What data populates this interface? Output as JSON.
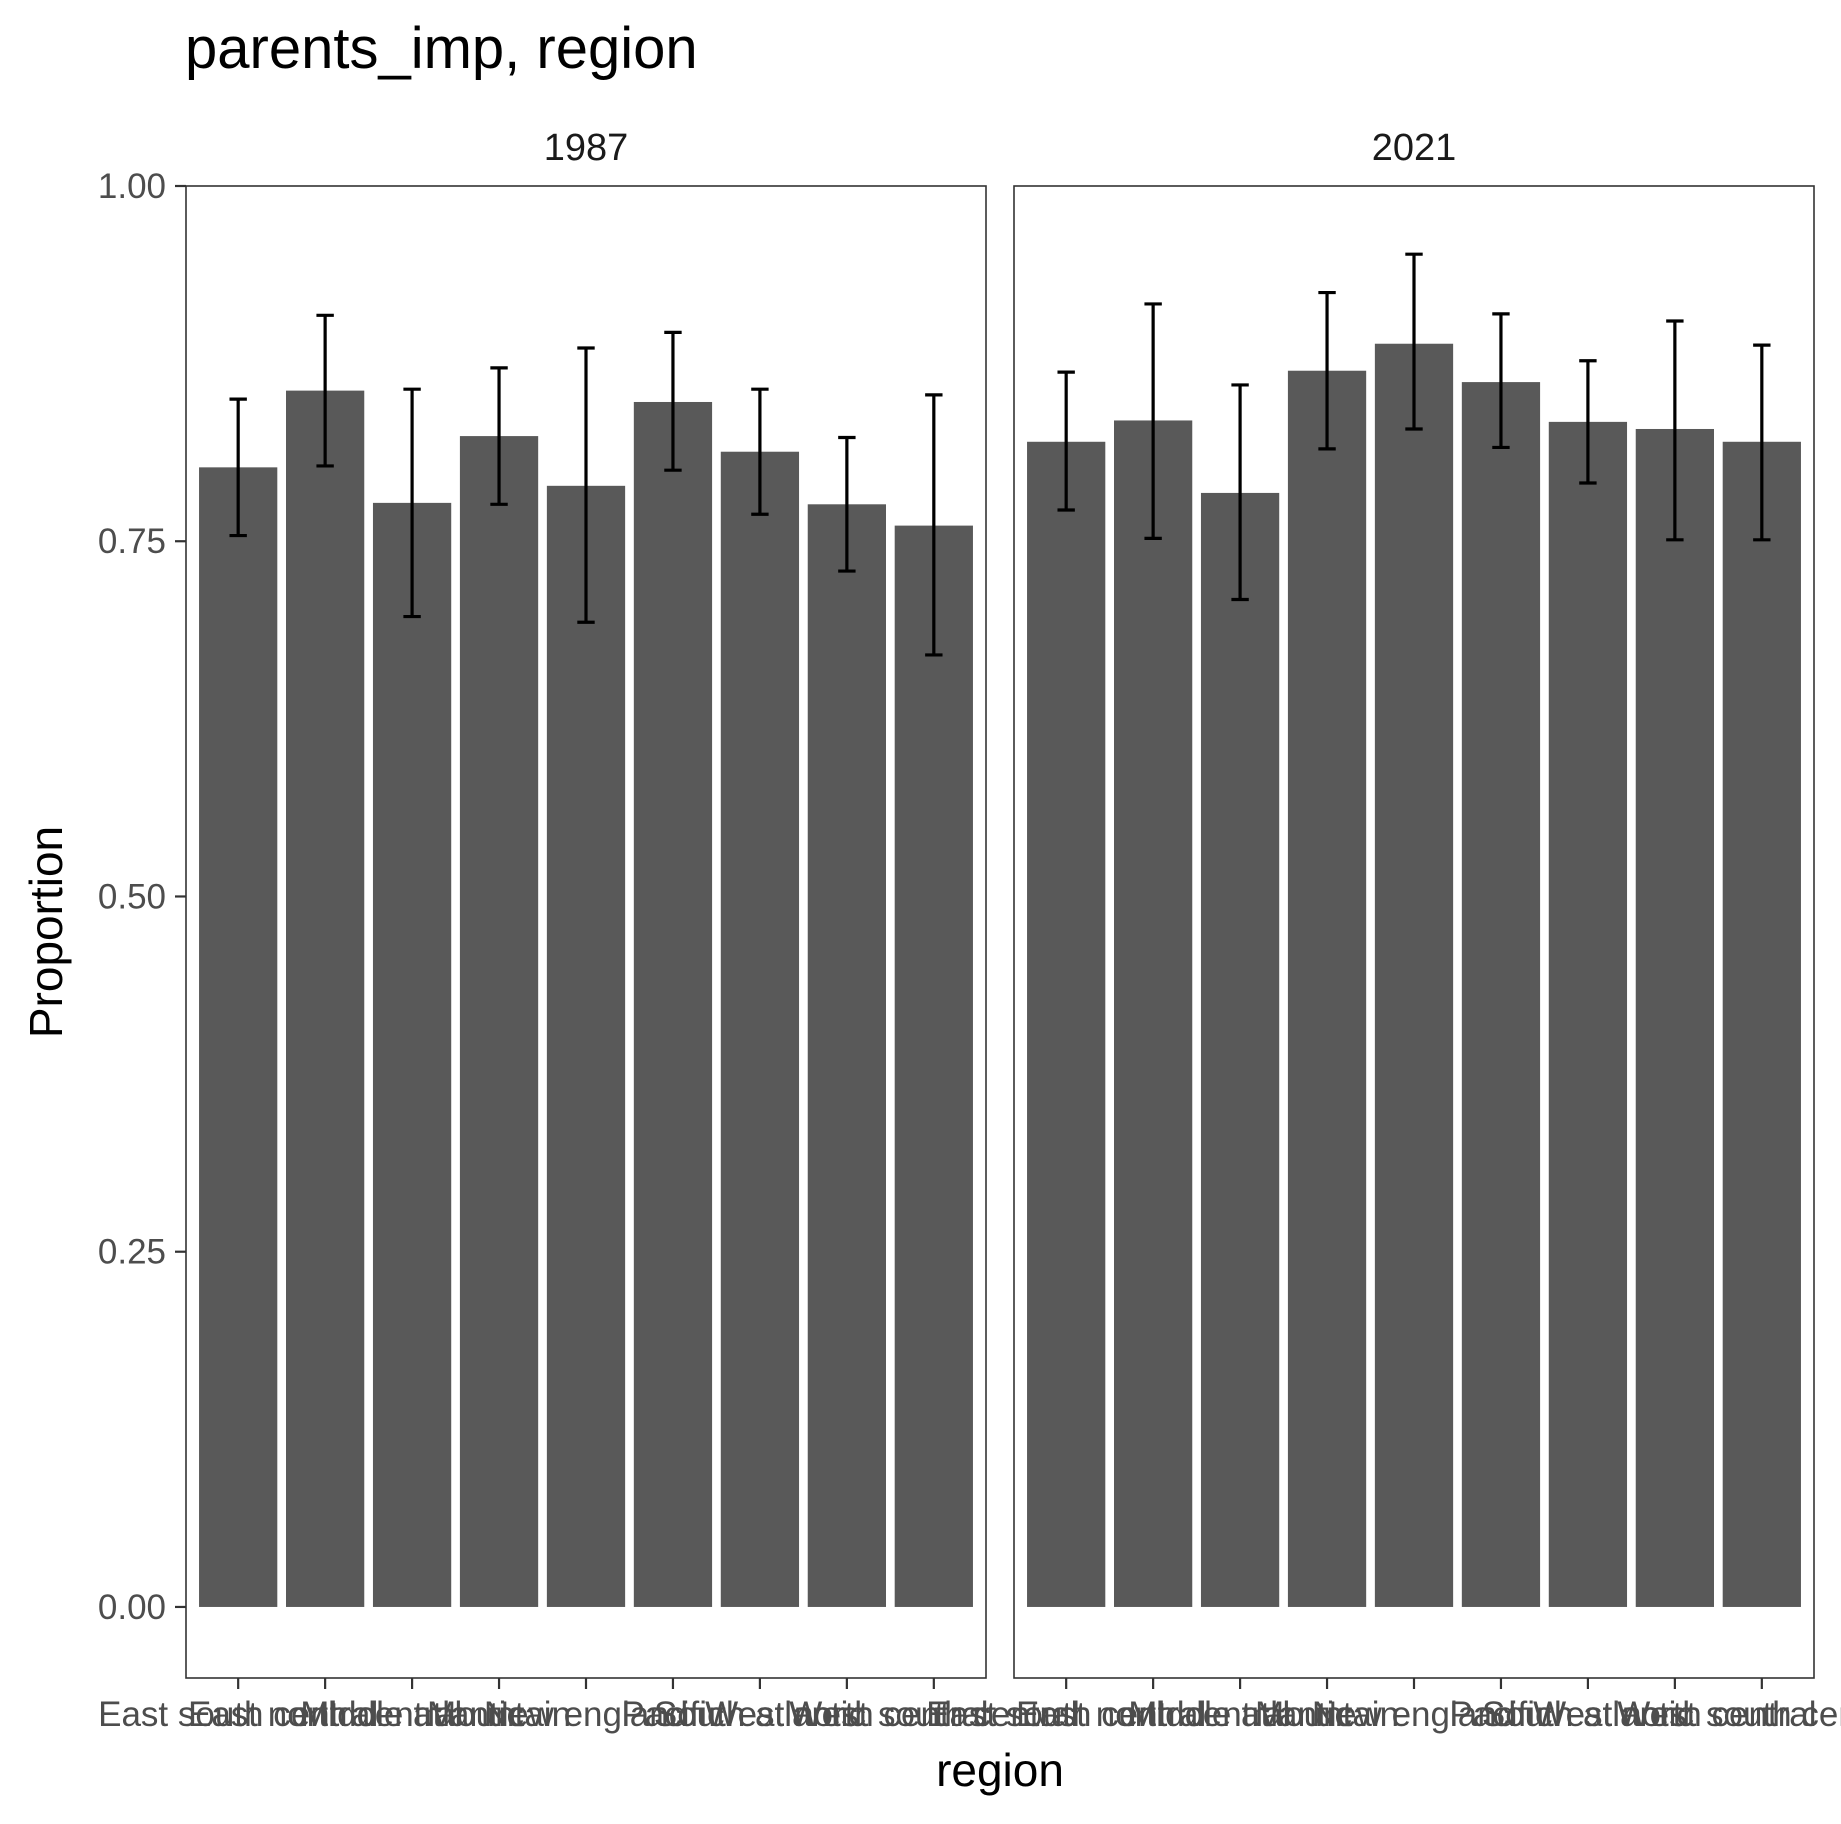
{
  "chart_data": {
    "type": "bar",
    "title": "parents_imp, region",
    "xlabel": "region",
    "ylabel": "Proportion",
    "ylim": [
      -0.05,
      1.0
    ],
    "yticks": [
      "0.00",
      "0.25",
      "0.50",
      "0.75",
      "1.00"
    ],
    "ytick_values": [
      0,
      0.25,
      0.5,
      0.75,
      1.0
    ],
    "grid": false,
    "categories": [
      "East south central",
      "East north central",
      "Middle atlantic",
      "Mountain",
      "New england",
      "Pacific",
      "South atlantic",
      "West north central",
      "West south central"
    ],
    "panels": [
      {
        "name": "1987",
        "values": [
          0.802,
          0.856,
          0.777,
          0.824,
          0.789,
          0.848,
          0.813,
          0.776,
          0.761
        ],
        "lower": [
          0.754,
          0.803,
          0.697,
          0.776,
          0.693,
          0.8,
          0.769,
          0.729,
          0.67
        ],
        "upper": [
          0.85,
          0.909,
          0.857,
          0.872,
          0.886,
          0.897,
          0.857,
          0.823,
          0.853
        ]
      },
      {
        "name": "2021",
        "values": [
          0.82,
          0.835,
          0.784,
          0.87,
          0.889,
          0.862,
          0.834,
          0.829,
          0.82
        ],
        "lower": [
          0.772,
          0.752,
          0.709,
          0.815,
          0.829,
          0.816,
          0.791,
          0.751,
          0.751
        ],
        "upper": [
          0.869,
          0.917,
          0.86,
          0.925,
          0.952,
          0.91,
          0.877,
          0.905,
          0.888
        ]
      }
    ]
  }
}
